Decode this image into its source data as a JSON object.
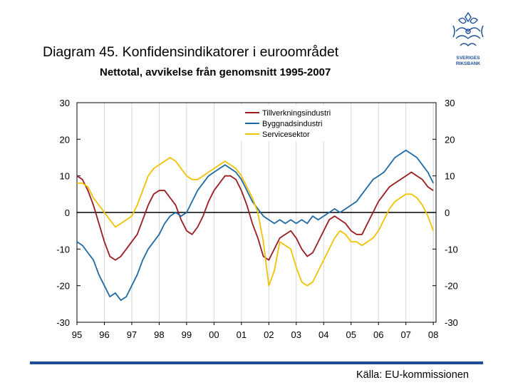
{
  "header": {
    "title": "Diagram 45. Konfidensindikatorer i euroområdet",
    "subtitle": "Nettotal, avvikelse från genomsnitt 1995-2007"
  },
  "logo": {
    "line1": "SVERIGES",
    "line2": "RIKSBANK"
  },
  "footer": {
    "source": "Källa: EU-kommissionen"
  },
  "chart_data": {
    "type": "line",
    "title": "Konfidensindikatorer i euroområdet",
    "ylabel_left": "",
    "ylabel_right": "",
    "ylim": [
      -30,
      30
    ],
    "yticks": [
      30,
      20,
      10,
      0,
      -10,
      -20,
      -30
    ],
    "yticks_right": [
      30,
      20,
      10,
      0,
      -10,
      -20,
      -30
    ],
    "xlim": [
      1995,
      2008.1
    ],
    "xticks": [
      {
        "value": 1995,
        "label": "95"
      },
      {
        "value": 1996,
        "label": "96"
      },
      {
        "value": 1997,
        "label": "97"
      },
      {
        "value": 1998,
        "label": "98"
      },
      {
        "value": 1999,
        "label": "99"
      },
      {
        "value": 2000,
        "label": "00"
      },
      {
        "value": 2001,
        "label": "01"
      },
      {
        "value": 2002,
        "label": "02"
      },
      {
        "value": 2003,
        "label": "03"
      },
      {
        "value": 2004,
        "label": "04"
      },
      {
        "value": 2005,
        "label": "05"
      },
      {
        "value": 2006,
        "label": "06"
      },
      {
        "value": 2007,
        "label": "07"
      },
      {
        "value": 2008,
        "label": "08"
      }
    ],
    "legend_position": "top-right",
    "zero_line": true,
    "series": [
      {
        "name": "Tillverkningsindustri",
        "color": "#9b1b1f",
        "points": [
          [
            1995.0,
            10
          ],
          [
            1995.2,
            9
          ],
          [
            1995.4,
            6
          ],
          [
            1995.6,
            2
          ],
          [
            1995.8,
            -3
          ],
          [
            1996.0,
            -8
          ],
          [
            1996.2,
            -12
          ],
          [
            1996.4,
            -13
          ],
          [
            1996.6,
            -12
          ],
          [
            1996.8,
            -10
          ],
          [
            1997.0,
            -8
          ],
          [
            1997.2,
            -6
          ],
          [
            1997.4,
            -2
          ],
          [
            1997.6,
            2
          ],
          [
            1997.8,
            5
          ],
          [
            1998.0,
            6
          ],
          [
            1998.2,
            6
          ],
          [
            1998.4,
            4
          ],
          [
            1998.6,
            2
          ],
          [
            1998.8,
            -2
          ],
          [
            1999.0,
            -5
          ],
          [
            1999.2,
            -6
          ],
          [
            1999.4,
            -4
          ],
          [
            1999.6,
            -1
          ],
          [
            1999.8,
            3
          ],
          [
            2000.0,
            6
          ],
          [
            2000.2,
            8
          ],
          [
            2000.4,
            10
          ],
          [
            2000.6,
            10
          ],
          [
            2000.8,
            9
          ],
          [
            2001.0,
            6
          ],
          [
            2001.2,
            2
          ],
          [
            2001.4,
            -3
          ],
          [
            2001.6,
            -7
          ],
          [
            2001.8,
            -12
          ],
          [
            2002.0,
            -13
          ],
          [
            2002.2,
            -10
          ],
          [
            2002.4,
            -7
          ],
          [
            2002.6,
            -6
          ],
          [
            2002.8,
            -5
          ],
          [
            2003.0,
            -7
          ],
          [
            2003.2,
            -10
          ],
          [
            2003.4,
            -12
          ],
          [
            2003.6,
            -11
          ],
          [
            2003.8,
            -8
          ],
          [
            2004.0,
            -5
          ],
          [
            2004.2,
            -2
          ],
          [
            2004.4,
            -1
          ],
          [
            2004.6,
            -2
          ],
          [
            2004.8,
            -3
          ],
          [
            2005.0,
            -5
          ],
          [
            2005.2,
            -6
          ],
          [
            2005.4,
            -6
          ],
          [
            2005.6,
            -3
          ],
          [
            2005.8,
            0
          ],
          [
            2006.0,
            3
          ],
          [
            2006.2,
            5
          ],
          [
            2006.4,
            7
          ],
          [
            2006.6,
            8
          ],
          [
            2006.8,
            9
          ],
          [
            2007.0,
            10
          ],
          [
            2007.2,
            11
          ],
          [
            2007.4,
            10
          ],
          [
            2007.6,
            9
          ],
          [
            2007.8,
            7
          ],
          [
            2008.0,
            6
          ]
        ]
      },
      {
        "name": "Byggnadsindustri",
        "color": "#1f6aa5",
        "points": [
          [
            1995.0,
            -8
          ],
          [
            1995.2,
            -9
          ],
          [
            1995.4,
            -11
          ],
          [
            1995.6,
            -13
          ],
          [
            1995.8,
            -17
          ],
          [
            1996.0,
            -20
          ],
          [
            1996.2,
            -23
          ],
          [
            1996.4,
            -22
          ],
          [
            1996.6,
            -24
          ],
          [
            1996.8,
            -23
          ],
          [
            1997.0,
            -20
          ],
          [
            1997.2,
            -17
          ],
          [
            1997.4,
            -13
          ],
          [
            1997.6,
            -10
          ],
          [
            1997.8,
            -8
          ],
          [
            1998.0,
            -6
          ],
          [
            1998.2,
            -3
          ],
          [
            1998.4,
            -1
          ],
          [
            1998.6,
            0
          ],
          [
            1998.8,
            -1
          ],
          [
            1999.0,
            0
          ],
          [
            1999.2,
            3
          ],
          [
            1999.4,
            6
          ],
          [
            1999.6,
            8
          ],
          [
            1999.8,
            10
          ],
          [
            2000.0,
            11
          ],
          [
            2000.2,
            12
          ],
          [
            2000.4,
            13
          ],
          [
            2000.6,
            12
          ],
          [
            2000.8,
            11
          ],
          [
            2001.0,
            9
          ],
          [
            2001.2,
            6
          ],
          [
            2001.4,
            3
          ],
          [
            2001.6,
            1
          ],
          [
            2001.8,
            -1
          ],
          [
            2002.0,
            -2
          ],
          [
            2002.2,
            -3
          ],
          [
            2002.4,
            -2
          ],
          [
            2002.6,
            -3
          ],
          [
            2002.8,
            -2
          ],
          [
            2003.0,
            -3
          ],
          [
            2003.2,
            -2
          ],
          [
            2003.4,
            -3
          ],
          [
            2003.6,
            -1
          ],
          [
            2003.8,
            -2
          ],
          [
            2004.0,
            -1
          ],
          [
            2004.2,
            0
          ],
          [
            2004.4,
            1
          ],
          [
            2004.6,
            0
          ],
          [
            2004.8,
            1
          ],
          [
            2005.0,
            2
          ],
          [
            2005.2,
            3
          ],
          [
            2005.4,
            5
          ],
          [
            2005.6,
            7
          ],
          [
            2005.8,
            9
          ],
          [
            2006.0,
            10
          ],
          [
            2006.2,
            11
          ],
          [
            2006.4,
            13
          ],
          [
            2006.6,
            15
          ],
          [
            2006.8,
            16
          ],
          [
            2007.0,
            17
          ],
          [
            2007.2,
            16
          ],
          [
            2007.4,
            15
          ],
          [
            2007.6,
            13
          ],
          [
            2007.8,
            11
          ],
          [
            2008.0,
            8
          ]
        ]
      },
      {
        "name": "Servicesektor",
        "color": "#f2c200",
        "points": [
          [
            1995.0,
            8
          ],
          [
            1995.2,
            8
          ],
          [
            1995.4,
            7
          ],
          [
            1995.6,
            4
          ],
          [
            1995.8,
            2
          ],
          [
            1996.0,
            0
          ],
          [
            1996.2,
            -2
          ],
          [
            1996.4,
            -4
          ],
          [
            1996.6,
            -3
          ],
          [
            1996.8,
            -2
          ],
          [
            1997.0,
            -1
          ],
          [
            1997.2,
            2
          ],
          [
            1997.4,
            6
          ],
          [
            1997.6,
            10
          ],
          [
            1997.8,
            12
          ],
          [
            1998.0,
            13
          ],
          [
            1998.2,
            14
          ],
          [
            1998.4,
            15
          ],
          [
            1998.6,
            14
          ],
          [
            1998.8,
            12
          ],
          [
            1999.0,
            10
          ],
          [
            1999.2,
            9
          ],
          [
            1999.4,
            9
          ],
          [
            1999.6,
            10
          ],
          [
            1999.8,
            11
          ],
          [
            2000.0,
            12
          ],
          [
            2000.2,
            13
          ],
          [
            2000.4,
            14
          ],
          [
            2000.6,
            13
          ],
          [
            2000.8,
            12
          ],
          [
            2001.0,
            10
          ],
          [
            2001.2,
            7
          ],
          [
            2001.4,
            4
          ],
          [
            2001.6,
            0
          ],
          [
            2001.8,
            -8
          ],
          [
            2002.0,
            -20
          ],
          [
            2002.2,
            -16
          ],
          [
            2002.4,
            -8
          ],
          [
            2002.6,
            -9
          ],
          [
            2002.8,
            -10
          ],
          [
            2003.0,
            -15
          ],
          [
            2003.2,
            -19
          ],
          [
            2003.4,
            -20
          ],
          [
            2003.6,
            -19
          ],
          [
            2003.8,
            -16
          ],
          [
            2004.0,
            -13
          ],
          [
            2004.2,
            -10
          ],
          [
            2004.4,
            -7
          ],
          [
            2004.6,
            -5
          ],
          [
            2004.8,
            -6
          ],
          [
            2005.0,
            -8
          ],
          [
            2005.2,
            -8
          ],
          [
            2005.4,
            -9
          ],
          [
            2005.6,
            -8
          ],
          [
            2005.8,
            -7
          ],
          [
            2006.0,
            -5
          ],
          [
            2006.2,
            -2
          ],
          [
            2006.4,
            1
          ],
          [
            2006.6,
            3
          ],
          [
            2006.8,
            4
          ],
          [
            2007.0,
            5
          ],
          [
            2007.2,
            5
          ],
          [
            2007.4,
            4
          ],
          [
            2007.6,
            2
          ],
          [
            2007.8,
            -1
          ],
          [
            2008.0,
            -5
          ]
        ]
      }
    ]
  }
}
